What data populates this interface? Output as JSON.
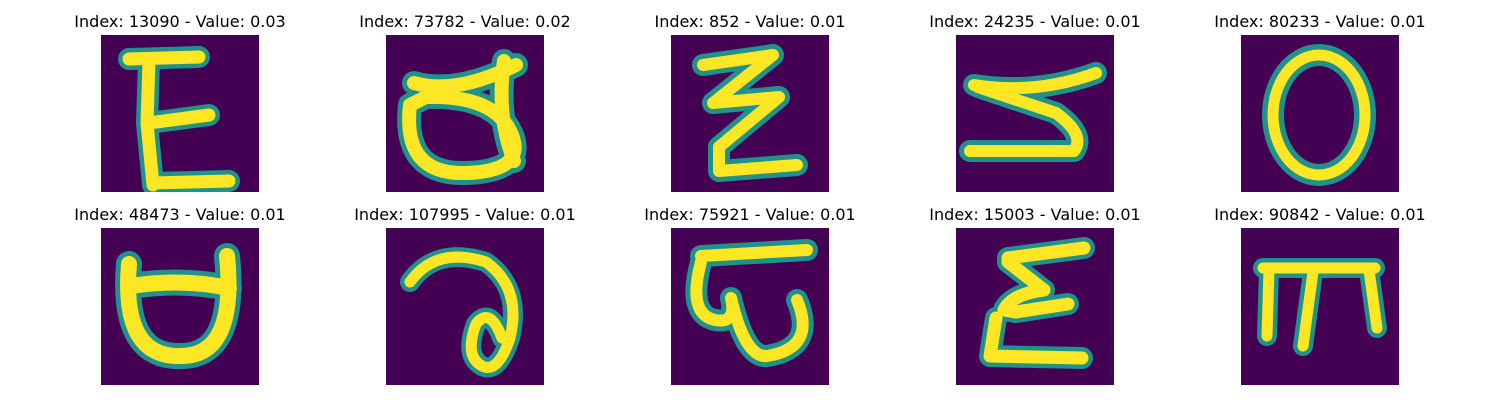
{
  "figure": {
    "panels": [
      {
        "title": "Index: 13090 - Value: 0.03",
        "glyph": "E-like-character"
      },
      {
        "title": "Index: 73782 - Value: 0.02",
        "glyph": "d-like-character"
      },
      {
        "title": "Index: 852 - Value: 0.01",
        "glyph": "zigzag-character"
      },
      {
        "title": "Index: 24235 - Value: 0.01",
        "glyph": "reversed-s-character"
      },
      {
        "title": "Index: 80233 - Value: 0.01",
        "glyph": "o-character"
      },
      {
        "title": "Index: 48473 - Value: 0.01",
        "glyph": "cup-character"
      },
      {
        "title": "Index: 107995 - Value: 0.01",
        "glyph": "loop-character"
      },
      {
        "title": "Index: 75921 - Value: 0.01",
        "glyph": "w-like-character"
      },
      {
        "title": "Index: 15003 - Value: 0.01",
        "glyph": "epsilon-character"
      },
      {
        "title": "Index: 90842 - Value: 0.01",
        "glyph": "m-like-character"
      }
    ],
    "colors": {
      "background": "#440154",
      "stroke_edge": "#21918c",
      "stroke_core": "#fde725"
    }
  }
}
